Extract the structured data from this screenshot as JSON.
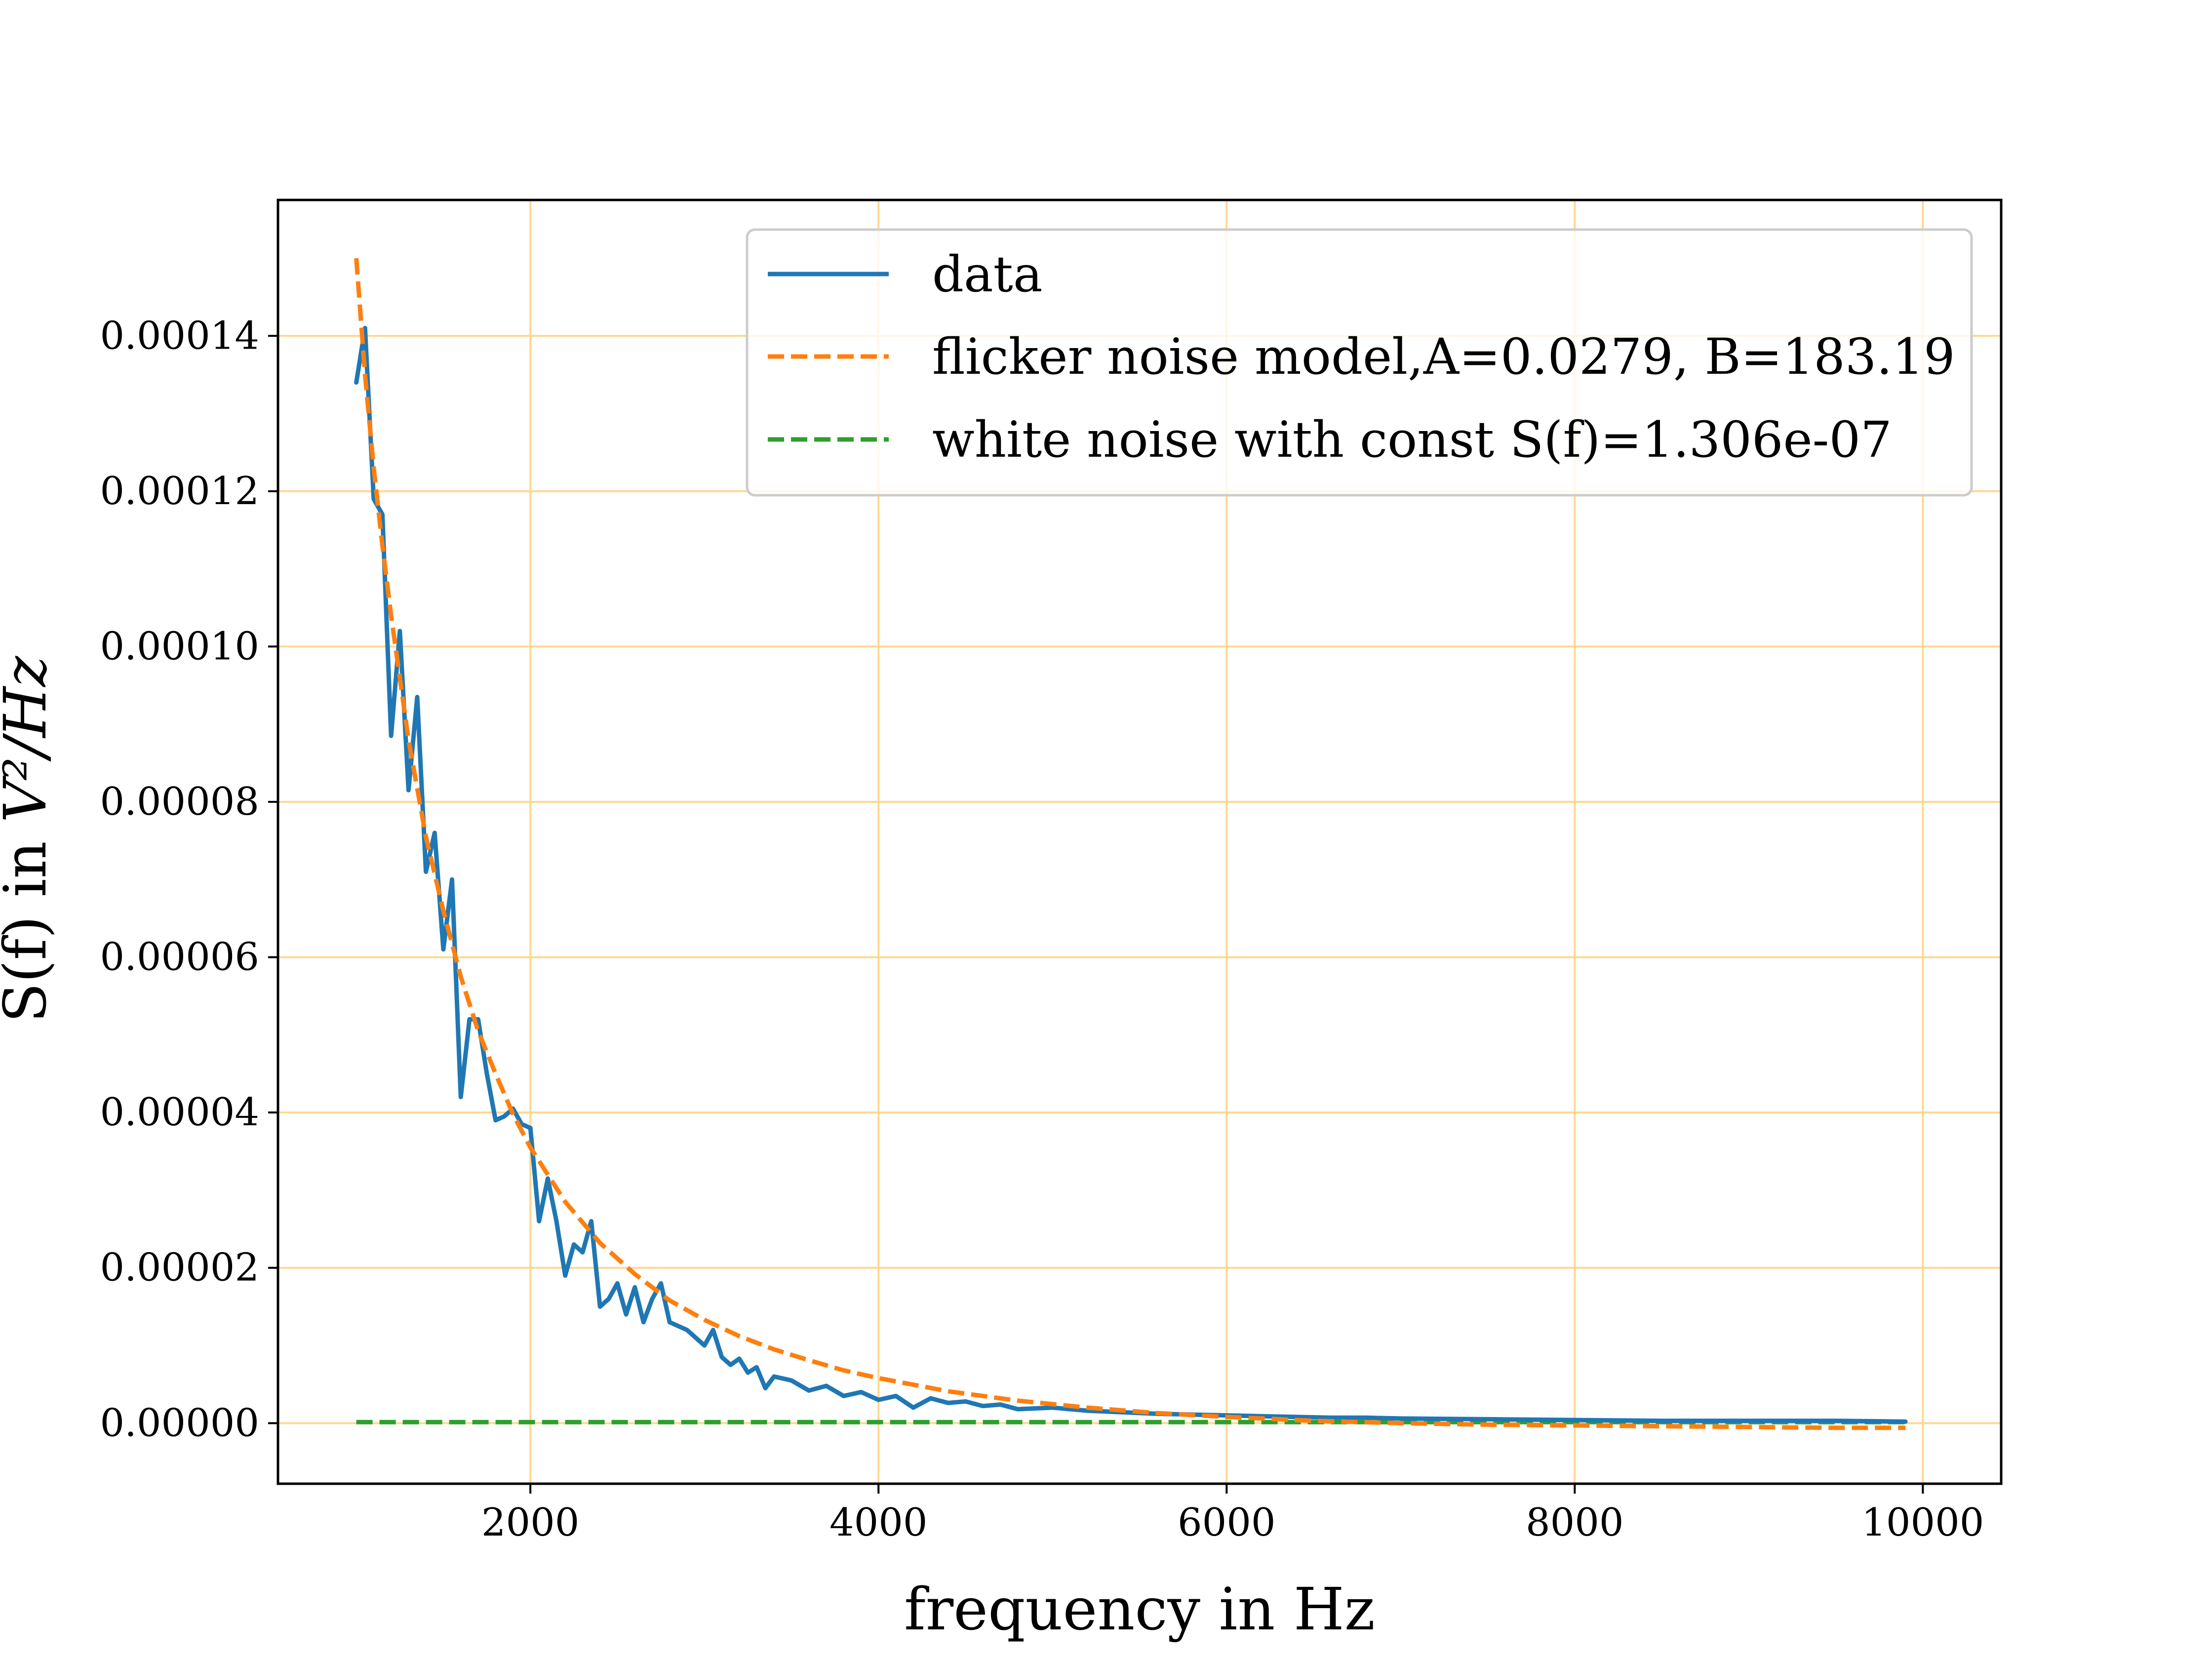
{
  "chart_data": {
    "type": "line",
    "title": "",
    "xlabel": "frequency in Hz",
    "ylabel_prefix": "S(f) in ",
    "ylabel_math": "V²/Hz",
    "xlim": [
      550,
      10450
    ],
    "ylim": [
      -7.8e-06,
      0.0001575
    ],
    "xticks": [
      2000,
      4000,
      6000,
      8000,
      10000
    ],
    "xtick_labels": [
      "2000",
      "4000",
      "6000",
      "8000",
      "10000"
    ],
    "yticks": [
      0,
      2e-05,
      4e-05,
      6e-05,
      8e-05,
      0.0001,
      0.00012,
      0.00014
    ],
    "ytick_labels": [
      "0.00000",
      "0.00002",
      "0.00004",
      "0.00006",
      "0.00008",
      "0.00010",
      "0.00012",
      "0.00014"
    ],
    "grid": true,
    "grid_color": "#ffd890",
    "legend_position": "upper-right",
    "series": [
      {
        "name": "data",
        "style": "solid",
        "color": "#1f77b4",
        "x": [
          1000,
          1050,
          1100,
          1150,
          1200,
          1250,
          1300,
          1350,
          1400,
          1450,
          1500,
          1550,
          1600,
          1650,
          1700,
          1750,
          1800,
          1850,
          1900,
          1950,
          2000,
          2050,
          2100,
          2150,
          2200,
          2250,
          2300,
          2350,
          2400,
          2450,
          2500,
          2550,
          2600,
          2650,
          2700,
          2750,
          2800,
          2900,
          3000,
          3050,
          3100,
          3150,
          3200,
          3250,
          3300,
          3350,
          3400,
          3500,
          3600,
          3700,
          3800,
          3900,
          4000,
          4100,
          4200,
          4300,
          4400,
          4500,
          4600,
          4700,
          4800,
          5000,
          5200,
          5400,
          5600,
          5800,
          6000,
          6200,
          6400,
          6600,
          6800,
          7000,
          7500,
          8000,
          8500,
          9000,
          9500,
          9900
        ],
        "y": [
          0.000134,
          0.000141,
          0.000119,
          0.000117,
          8.85e-05,
          0.000102,
          8.15e-05,
          9.35e-05,
          7.1e-05,
          7.6e-05,
          6.1e-05,
          7e-05,
          4.2e-05,
          5.2e-05,
          5.2e-05,
          4.5e-05,
          3.9e-05,
          3.95e-05,
          4.05e-05,
          3.85e-05,
          3.8e-05,
          2.6e-05,
          3.15e-05,
          2.6e-05,
          1.9e-05,
          2.3e-05,
          2.2e-05,
          2.6e-05,
          1.5e-05,
          1.6e-05,
          1.8e-05,
          1.4e-05,
          1.75e-05,
          1.3e-05,
          1.6e-05,
          1.8e-05,
          1.3e-05,
          1.2e-05,
          1e-05,
          1.2e-05,
          8.5e-06,
          7.5e-06,
          8.3e-06,
          6.5e-06,
          7.2e-06,
          4.5e-06,
          6e-06,
          5.5e-06,
          4.2e-06,
          4.8e-06,
          3.5e-06,
          4e-06,
          3e-06,
          3.5e-06,
          2e-06,
          3.2e-06,
          2.6e-06,
          2.8e-06,
          2.2e-06,
          2.4e-06,
          1.8e-06,
          2e-06,
          1.6e-06,
          1.4e-06,
          1.2e-06,
          1.1e-06,
          1e-06,
          9e-07,
          8e-07,
          7e-07,
          7e-07,
          6e-07,
          5e-07,
          4e-07,
          3e-07,
          3e-07,
          3e-07,
          2e-07
        ]
      },
      {
        "name": "flicker noise model,A=0.0279, B=183.19",
        "style": "dashed",
        "color": "#ff7f0e",
        "x": [
          1000,
          1050,
          1100,
          1150,
          1200,
          1300,
          1400,
          1500,
          1600,
          1700,
          1800,
          1900,
          2000,
          2200,
          2400,
          2600,
          2800,
          3000,
          3200,
          3400,
          3600,
          3800,
          4000,
          4400,
          4800,
          5200,
          5600,
          6000,
          6500,
          7000,
          7500,
          8000,
          8500,
          9000,
          9500,
          9900
        ],
        "y": [
          0.00015,
          0.000135,
          0.000123,
          0.000113,
          0.000104,
          8.8e-05,
          7.55e-05,
          6.6e-05,
          5.75e-05,
          5.05e-05,
          4.5e-05,
          3.98e-05,
          3.55e-05,
          2.85e-05,
          2.32e-05,
          1.92e-05,
          1.58e-05,
          1.33e-05,
          1.12e-05,
          9.5e-06,
          8.1e-06,
          6.8e-06,
          5.8e-06,
          4.1e-06,
          2.9e-06,
          2e-06,
          1.3e-06,
          8e-07,
          3e-07,
          0.0,
          -2e-07,
          -3e-07,
          -4e-07,
          -5e-07,
          -6e-07,
          -6e-07
        ]
      },
      {
        "name": "white noise with const S(f)=1.306e-07",
        "style": "dashed",
        "color": "#2ca02c",
        "x": [
          1000,
          9900
        ],
        "y": [
          1.306e-07,
          1.306e-07
        ]
      }
    ]
  }
}
